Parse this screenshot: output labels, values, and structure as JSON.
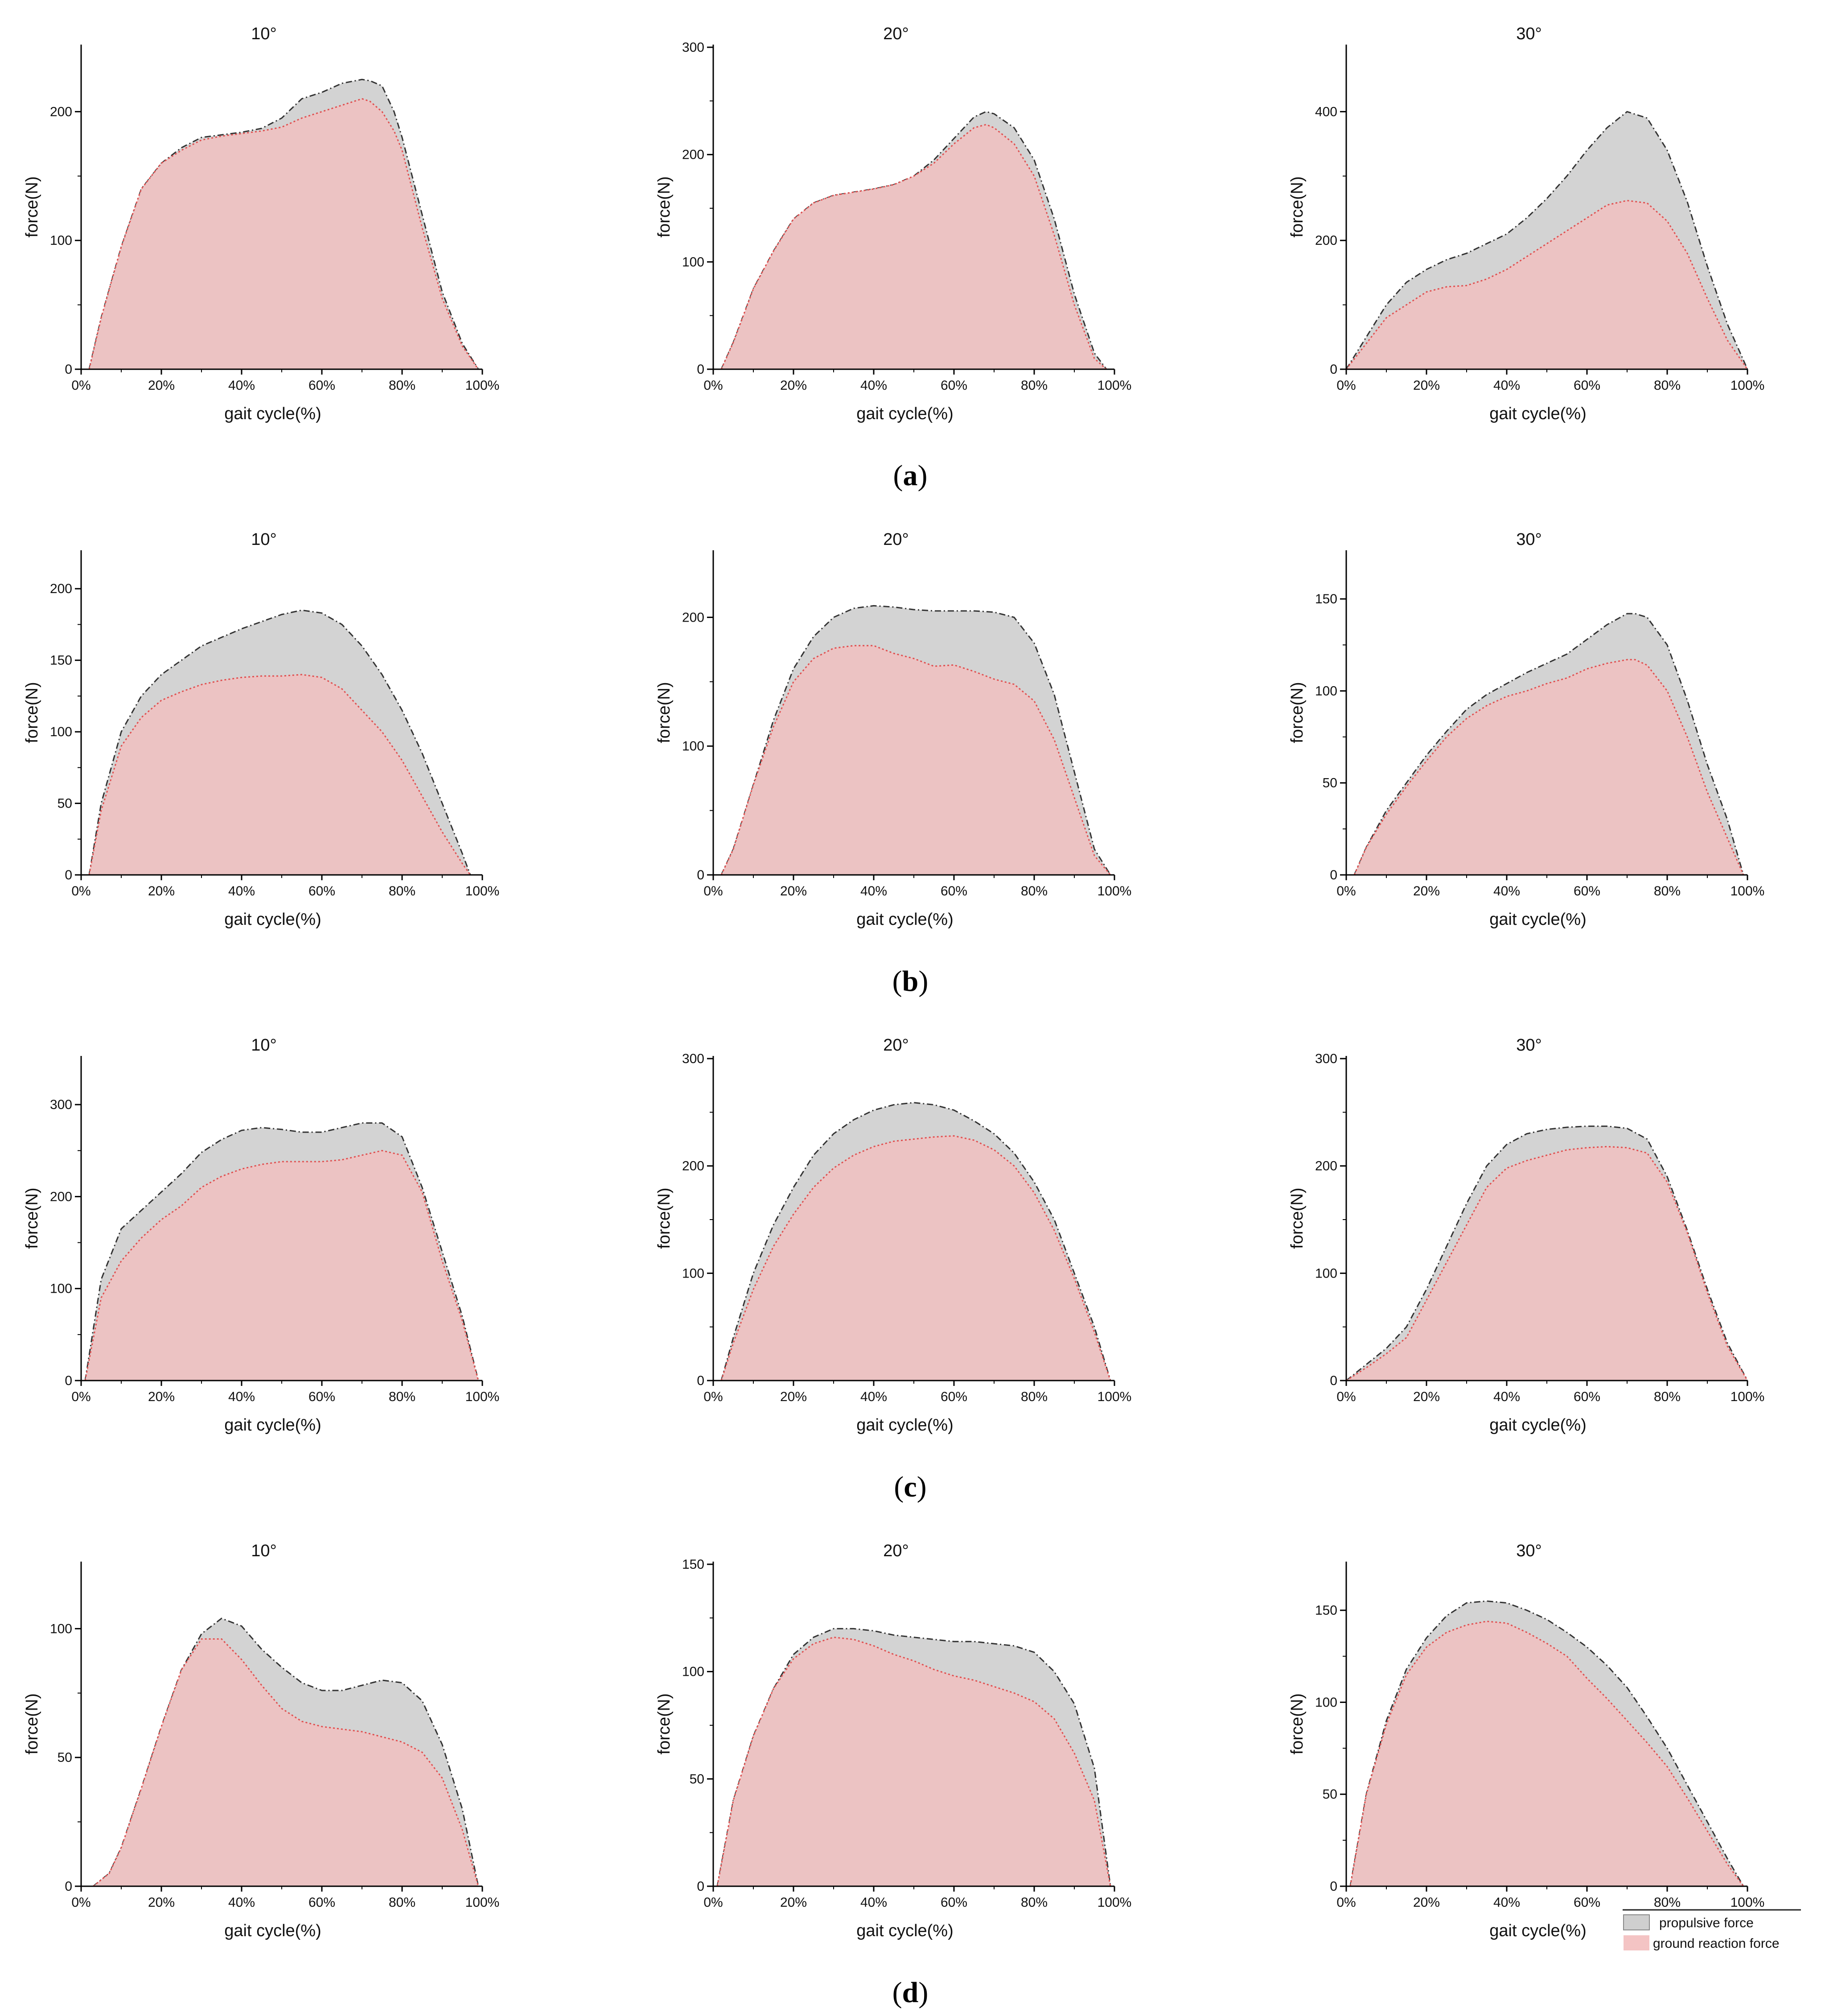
{
  "figure": {
    "row_labels": [
      "(a)",
      "(b)",
      "(c)",
      "(d)"
    ],
    "legend": {
      "propulsive": "propulsive force",
      "grf": "ground reaction force"
    },
    "colors": {
      "propulsive_fill": "#d3d3d3",
      "grf_fill": "#f0c0c0",
      "grf_line": "#e05050",
      "propulsive_line": "#333333"
    }
  },
  "chart_data": [
    {
      "type": "area",
      "row": "(a)",
      "title": "10°",
      "xlabel": "gait cycle(%)",
      "ylabel": "force(N)",
      "ylim": [
        0,
        250
      ],
      "yticks": [
        0,
        100,
        200
      ],
      "x_tick_labels": [
        "0%",
        "20%",
        "40%",
        "60%",
        "80%",
        "100%"
      ],
      "x": [
        2,
        5,
        10,
        15,
        20,
        25,
        30,
        35,
        40,
        45,
        50,
        55,
        60,
        65,
        70,
        72,
        75,
        78,
        80,
        85,
        90,
        95,
        99
      ],
      "series": [
        {
          "name": "propulsive force",
          "values": [
            0,
            40,
            95,
            140,
            160,
            172,
            180,
            182,
            184,
            187,
            195,
            210,
            215,
            222,
            225,
            224,
            220,
            200,
            180,
            120,
            60,
            20,
            0
          ]
        },
        {
          "name": "ground reaction force",
          "values": [
            0,
            40,
            95,
            140,
            160,
            170,
            178,
            181,
            183,
            185,
            188,
            195,
            200,
            205,
            210,
            208,
            200,
            185,
            170,
            110,
            55,
            18,
            0
          ]
        }
      ]
    },
    {
      "type": "area",
      "row": "(a)",
      "title": "20°",
      "xlabel": "gait cycle(%)",
      "ylabel": "force(N)",
      "ylim": [
        0,
        300
      ],
      "yticks": [
        0,
        100,
        200,
        300
      ],
      "x_tick_labels": [
        "0%",
        "20%",
        "40%",
        "60%",
        "80%",
        "100%"
      ],
      "x": [
        2,
        5,
        10,
        15,
        20,
        25,
        30,
        35,
        40,
        45,
        50,
        55,
        60,
        65,
        68,
        70,
        75,
        80,
        85,
        90,
        95,
        98
      ],
      "series": [
        {
          "name": "propulsive force",
          "values": [
            0,
            25,
            75,
            110,
            140,
            155,
            162,
            165,
            168,
            172,
            180,
            195,
            215,
            235,
            240,
            238,
            225,
            195,
            140,
            70,
            15,
            0
          ]
        },
        {
          "name": "ground reaction force",
          "values": [
            0,
            25,
            75,
            110,
            140,
            155,
            162,
            165,
            168,
            172,
            180,
            192,
            210,
            225,
            228,
            225,
            210,
            180,
            125,
            60,
            10,
            0
          ]
        }
      ]
    },
    {
      "type": "area",
      "row": "(a)",
      "title": "30°",
      "xlabel": "gait cycle(%)",
      "ylabel": "force(N)",
      "ylim": [
        0,
        500
      ],
      "yticks": [
        0,
        200,
        400
      ],
      "x_tick_labels": [
        "0%",
        "20%",
        "40%",
        "60%",
        "80%",
        "100%"
      ],
      "x": [
        0,
        5,
        10,
        15,
        20,
        25,
        30,
        35,
        40,
        45,
        50,
        55,
        60,
        65,
        70,
        75,
        80,
        85,
        90,
        95,
        100
      ],
      "series": [
        {
          "name": "propulsive force",
          "values": [
            0,
            50,
            100,
            135,
            155,
            170,
            180,
            195,
            210,
            235,
            265,
            300,
            340,
            375,
            400,
            390,
            340,
            260,
            160,
            70,
            0
          ]
        },
        {
          "name": "ground reaction force",
          "values": [
            0,
            40,
            80,
            100,
            120,
            128,
            130,
            140,
            155,
            175,
            195,
            215,
            235,
            255,
            262,
            258,
            230,
            180,
            110,
            45,
            0
          ]
        }
      ]
    },
    {
      "type": "area",
      "row": "(b)",
      "title": "10°",
      "xlabel": "gait cycle(%)",
      "ylabel": "force(N)",
      "ylim": [
        0,
        225
      ],
      "yticks": [
        0,
        50,
        100,
        150,
        200
      ],
      "x_tick_labels": [
        "0%",
        "20%",
        "40%",
        "60%",
        "80%",
        "100%"
      ],
      "x": [
        2,
        5,
        10,
        15,
        20,
        25,
        30,
        35,
        40,
        45,
        50,
        55,
        60,
        65,
        70,
        75,
        80,
        85,
        90,
        95,
        97
      ],
      "series": [
        {
          "name": "propulsive force",
          "values": [
            0,
            50,
            100,
            125,
            140,
            150,
            160,
            166,
            172,
            177,
            182,
            185,
            183,
            175,
            160,
            140,
            115,
            85,
            50,
            15,
            0
          ]
        },
        {
          "name": "ground reaction force",
          "values": [
            0,
            45,
            90,
            110,
            122,
            128,
            133,
            136,
            138,
            139,
            139,
            140,
            138,
            130,
            115,
            100,
            80,
            55,
            30,
            8,
            0
          ]
        }
      ]
    },
    {
      "type": "area",
      "row": "(b)",
      "title": "20°",
      "xlabel": "gait cycle(%)",
      "ylabel": "force(N)",
      "ylim": [
        0,
        250
      ],
      "yticks": [
        0,
        100,
        200
      ],
      "x_tick_labels": [
        "0%",
        "20%",
        "40%",
        "60%",
        "80%",
        "100%"
      ],
      "x": [
        2,
        5,
        10,
        15,
        20,
        25,
        30,
        35,
        40,
        45,
        50,
        55,
        60,
        65,
        70,
        75,
        80,
        85,
        90,
        95,
        99
      ],
      "series": [
        {
          "name": "propulsive force",
          "values": [
            0,
            20,
            70,
            120,
            160,
            185,
            200,
            207,
            209,
            208,
            206,
            205,
            205,
            205,
            204,
            200,
            180,
            140,
            80,
            20,
            0
          ]
        },
        {
          "name": "ground reaction force",
          "values": [
            0,
            20,
            70,
            115,
            150,
            168,
            176,
            178,
            178,
            172,
            168,
            162,
            163,
            158,
            152,
            148,
            135,
            105,
            60,
            15,
            0
          ]
        }
      ]
    },
    {
      "type": "area",
      "row": "(b)",
      "title": "30°",
      "xlabel": "gait cycle(%)",
      "ylabel": "force(N)",
      "ylim": [
        0,
        175
      ],
      "yticks": [
        0,
        50,
        100,
        150
      ],
      "x_tick_labels": [
        "0%",
        "20%",
        "40%",
        "60%",
        "80%",
        "100%"
      ],
      "x": [
        2,
        5,
        10,
        15,
        20,
        25,
        30,
        35,
        40,
        45,
        50,
        55,
        60,
        65,
        70,
        72,
        75,
        80,
        85,
        90,
        95,
        99
      ],
      "series": [
        {
          "name": "propulsive force",
          "values": [
            0,
            15,
            35,
            50,
            65,
            78,
            90,
            98,
            104,
            110,
            115,
            120,
            128,
            136,
            142,
            142,
            140,
            125,
            95,
            60,
            30,
            0
          ]
        },
        {
          "name": "ground reaction force",
          "values": [
            0,
            15,
            33,
            48,
            62,
            75,
            85,
            92,
            97,
            100,
            104,
            107,
            112,
            115,
            117,
            117,
            114,
            100,
            75,
            45,
            20,
            0
          ]
        }
      ]
    },
    {
      "type": "area",
      "row": "(c)",
      "title": "10°",
      "xlabel": "gait cycle(%)",
      "ylabel": "force(N)",
      "ylim": [
        0,
        350
      ],
      "yticks": [
        0,
        100,
        200,
        300
      ],
      "x_tick_labels": [
        "0%",
        "20%",
        "40%",
        "60%",
        "80%",
        "100%"
      ],
      "x": [
        1,
        5,
        10,
        15,
        20,
        25,
        30,
        35,
        40,
        45,
        50,
        55,
        60,
        65,
        70,
        75,
        80,
        85,
        90,
        95,
        99
      ],
      "series": [
        {
          "name": "propulsive force",
          "values": [
            0,
            110,
            165,
            185,
            205,
            225,
            248,
            262,
            272,
            275,
            273,
            270,
            270,
            275,
            280,
            280,
            265,
            210,
            140,
            70,
            0
          ]
        },
        {
          "name": "ground reaction force",
          "values": [
            0,
            90,
            130,
            155,
            175,
            190,
            210,
            222,
            230,
            235,
            238,
            238,
            238,
            240,
            245,
            250,
            245,
            205,
            130,
            65,
            0
          ]
        }
      ]
    },
    {
      "type": "area",
      "row": "(c)",
      "title": "20°",
      "xlabel": "gait cycle(%)",
      "ylabel": "force(N)",
      "ylim": [
        0,
        300
      ],
      "yticks": [
        0,
        100,
        200,
        300
      ],
      "x_tick_labels": [
        "0%",
        "20%",
        "40%",
        "60%",
        "80%",
        "100%"
      ],
      "x": [
        2,
        5,
        10,
        15,
        20,
        25,
        30,
        35,
        40,
        45,
        50,
        55,
        60,
        65,
        70,
        75,
        80,
        85,
        90,
        95,
        99
      ],
      "series": [
        {
          "name": "propulsive force",
          "values": [
            0,
            40,
            100,
            145,
            180,
            210,
            230,
            243,
            252,
            257,
            259,
            257,
            252,
            242,
            230,
            212,
            185,
            150,
            100,
            50,
            0
          ]
        },
        {
          "name": "ground reaction force",
          "values": [
            0,
            35,
            85,
            125,
            155,
            180,
            198,
            210,
            218,
            223,
            225,
            227,
            228,
            224,
            215,
            200,
            175,
            140,
            95,
            45,
            0
          ]
        }
      ]
    },
    {
      "type": "area",
      "row": "(c)",
      "title": "30°",
      "xlabel": "gait cycle(%)",
      "ylabel": "force(N)",
      "ylim": [
        0,
        300
      ],
      "yticks": [
        0,
        100,
        200,
        300
      ],
      "x_tick_labels": [
        "0%",
        "20%",
        "40%",
        "60%",
        "80%",
        "100%"
      ],
      "x": [
        0,
        5,
        10,
        15,
        20,
        25,
        30,
        35,
        40,
        45,
        50,
        55,
        60,
        65,
        70,
        75,
        80,
        85,
        90,
        95,
        100
      ],
      "series": [
        {
          "name": "propulsive force",
          "values": [
            0,
            15,
            30,
            50,
            85,
            125,
            165,
            200,
            220,
            230,
            234,
            236,
            237,
            237,
            235,
            225,
            190,
            140,
            85,
            35,
            0
          ]
        },
        {
          "name": "ground reaction force",
          "values": [
            0,
            12,
            25,
            40,
            75,
            110,
            145,
            180,
            198,
            205,
            210,
            215,
            217,
            218,
            217,
            212,
            185,
            138,
            82,
            32,
            0
          ]
        }
      ]
    },
    {
      "type": "area",
      "row": "(d)",
      "title": "10°",
      "xlabel": "gait cycle(%)",
      "ylabel": "force(N)",
      "ylim": [
        0,
        125
      ],
      "yticks": [
        0,
        50,
        100
      ],
      "x_tick_labels": [
        "0%",
        "20%",
        "40%",
        "60%",
        "80%",
        "100%"
      ],
      "x": [
        3,
        7,
        10,
        15,
        20,
        25,
        30,
        35,
        40,
        45,
        50,
        55,
        60,
        65,
        70,
        75,
        80,
        85,
        90,
        95,
        99
      ],
      "series": [
        {
          "name": "propulsive force",
          "values": [
            0,
            5,
            15,
            38,
            62,
            84,
            98,
            104,
            101,
            92,
            85,
            79,
            76,
            76,
            78,
            80,
            79,
            72,
            55,
            30,
            0
          ]
        },
        {
          "name": "ground reaction force",
          "values": [
            0,
            5,
            15,
            38,
            62,
            84,
            96,
            96,
            88,
            78,
            69,
            64,
            62,
            61,
            60,
            58,
            56,
            52,
            42,
            22,
            0
          ]
        }
      ]
    },
    {
      "type": "area",
      "row": "(d)",
      "title": "20°",
      "xlabel": "gait cycle(%)",
      "ylabel": "force(N)",
      "ylim": [
        0,
        150
      ],
      "yticks": [
        0,
        50,
        100,
        150
      ],
      "x_tick_labels": [
        "0%",
        "20%",
        "40%",
        "60%",
        "80%",
        "100%"
      ],
      "x": [
        1,
        5,
        10,
        15,
        20,
        25,
        30,
        35,
        40,
        45,
        50,
        55,
        60,
        65,
        70,
        75,
        80,
        85,
        90,
        95,
        99
      ],
      "series": [
        {
          "name": "propulsive force",
          "values": [
            0,
            40,
            70,
            92,
            108,
            116,
            120,
            120,
            119,
            117,
            116,
            115,
            114,
            114,
            113,
            112,
            109,
            100,
            85,
            55,
            0
          ]
        },
        {
          "name": "ground reaction force",
          "values": [
            0,
            40,
            70,
            92,
            106,
            113,
            116,
            115,
            112,
            108,
            105,
            101,
            98,
            96,
            93,
            90,
            86,
            78,
            62,
            40,
            0
          ]
        }
      ]
    },
    {
      "type": "area",
      "row": "(d)",
      "title": "30°",
      "xlabel": "gait cycle(%)",
      "ylabel": "force(N)",
      "ylim": [
        0,
        175
      ],
      "yticks": [
        0,
        50,
        100,
        150
      ],
      "x_tick_labels": [
        "0%",
        "20%",
        "40%",
        "60%",
        "80%",
        "100%"
      ],
      "x": [
        1,
        5,
        10,
        15,
        20,
        25,
        30,
        35,
        40,
        45,
        50,
        55,
        60,
        65,
        70,
        75,
        80,
        85,
        90,
        95,
        99
      ],
      "series": [
        {
          "name": "propulsive force",
          "values": [
            0,
            50,
            90,
            118,
            135,
            147,
            154,
            155,
            154,
            150,
            145,
            138,
            130,
            120,
            108,
            92,
            75,
            55,
            35,
            15,
            0
          ]
        },
        {
          "name": "ground reaction force",
          "values": [
            0,
            50,
            88,
            115,
            130,
            138,
            142,
            144,
            143,
            138,
            132,
            125,
            113,
            102,
            90,
            78,
            65,
            48,
            30,
            12,
            0
          ]
        }
      ]
    }
  ]
}
